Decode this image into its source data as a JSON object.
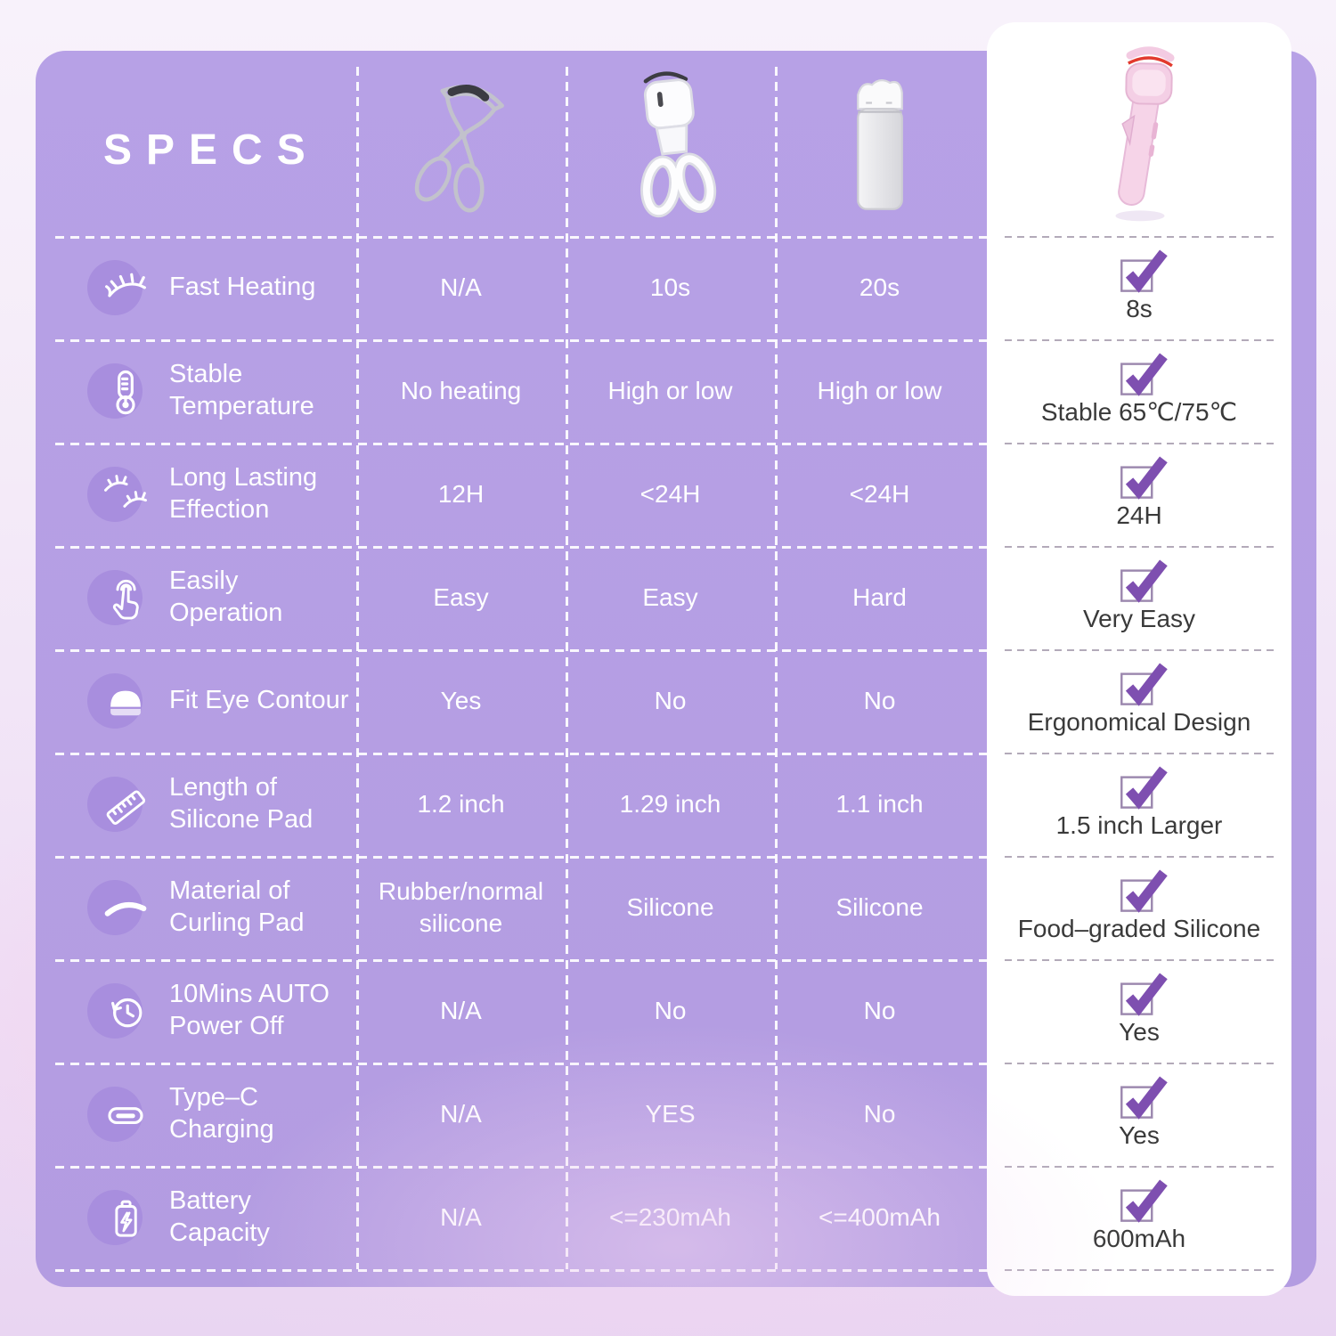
{
  "page": {
    "title": "SPECS"
  },
  "colors": {
    "table_purple": "#b49de3",
    "icon_circle_purple": "#a88ede",
    "check_purple": "#7e4fb0",
    "card_background": "#ffffff",
    "table_text": "#ffffff",
    "card_text": "#3a3a3a"
  },
  "products": [
    {
      "id": "manual-curler",
      "photo": "manual-eyelash-curler-photo"
    },
    {
      "id": "white-heated-curler",
      "photo": "white-heated-curler-photo"
    },
    {
      "id": "compact-heated-curler",
      "photo": "compact-heated-curler-photo"
    },
    {
      "id": "featured-pink-curler",
      "photo": "pink-heated-curler-photo",
      "highlighted": true
    }
  ],
  "rows": [
    {
      "label": "Fast Heating",
      "icon": "lash-icon",
      "values": [
        "N/A",
        "10s",
        "20s"
      ],
      "featured": "8s"
    },
    {
      "label": "Stable Temperature",
      "icon": "thermometer-icon",
      "values": [
        "No heating",
        "High or low",
        "High or low"
      ],
      "featured": "Stable 65℃/75℃"
    },
    {
      "label": "Long Lasting Effection",
      "icon": "double-lash-icon",
      "values": [
        "12H",
        "<24H",
        "<24H"
      ],
      "featured": "24H"
    },
    {
      "label": "Easily Operation",
      "icon": "touch-icon",
      "values": [
        "Easy",
        "Easy",
        "Hard"
      ],
      "featured": "Very Easy"
    },
    {
      "label": "Fit Eye Contour",
      "icon": "eye-pad-icon",
      "values": [
        "Yes",
        "No",
        "No"
      ],
      "featured": "Ergonomical Design"
    },
    {
      "label": "Length of Silicone Pad",
      "icon": "ruler-icon",
      "values": [
        "1.2 inch",
        "1.29 inch",
        "1.1 inch"
      ],
      "featured": "1.5 inch Larger"
    },
    {
      "label": "Material of Curling Pad",
      "icon": "curve-icon",
      "values": [
        "Rubber/normal silicone",
        "Silicone",
        "Silicone"
      ],
      "featured": "Food–graded Silicone"
    },
    {
      "label": "10Mins AUTO Power Off",
      "icon": "auto-off-icon",
      "values": [
        "N/A",
        "No",
        "No"
      ],
      "featured": "Yes"
    },
    {
      "label": "Type–C Charging",
      "icon": "type-c-icon",
      "values": [
        "N/A",
        "YES",
        "No"
      ],
      "featured": "Yes"
    },
    {
      "label": "Battery Capacity",
      "icon": "battery-icon",
      "values": [
        "N/A",
        "<=230mAh",
        "<=400mAh"
      ],
      "featured": "600mAh"
    }
  ],
  "chart_data": {
    "type": "table",
    "title": "SPECS",
    "columns": [
      "Feature",
      "Manual eyelash curler",
      "White heated curler",
      "Compact heated curler",
      "Featured pink curler"
    ],
    "rows": [
      [
        "Fast Heating",
        "N/A",
        "10s",
        "20s",
        "8s"
      ],
      [
        "Stable Temperature",
        "No heating",
        "High or low",
        "High or low",
        "Stable 65℃/75℃"
      ],
      [
        "Long Lasting Effection",
        "12H",
        "<24H",
        "<24H",
        "24H"
      ],
      [
        "Easily Operation",
        "Easy",
        "Easy",
        "Hard",
        "Very Easy"
      ],
      [
        "Fit Eye Contour",
        "Yes",
        "No",
        "No",
        "Ergonomical Design"
      ],
      [
        "Length of Silicone Pad",
        "1.2 inch",
        "1.29 inch",
        "1.1 inch",
        "1.5 inch Larger"
      ],
      [
        "Material of Curling Pad",
        "Rubber/normal silicone",
        "Silicone",
        "Silicone",
        "Food–graded Silicone"
      ],
      [
        "10Mins AUTO Power Off",
        "N/A",
        "No",
        "No",
        "Yes"
      ],
      [
        "Type–C Charging",
        "N/A",
        "YES",
        "No",
        "Yes"
      ],
      [
        "Battery Capacity",
        "N/A",
        "<=230mAh",
        "<=400mAh",
        "600mAh"
      ]
    ]
  }
}
